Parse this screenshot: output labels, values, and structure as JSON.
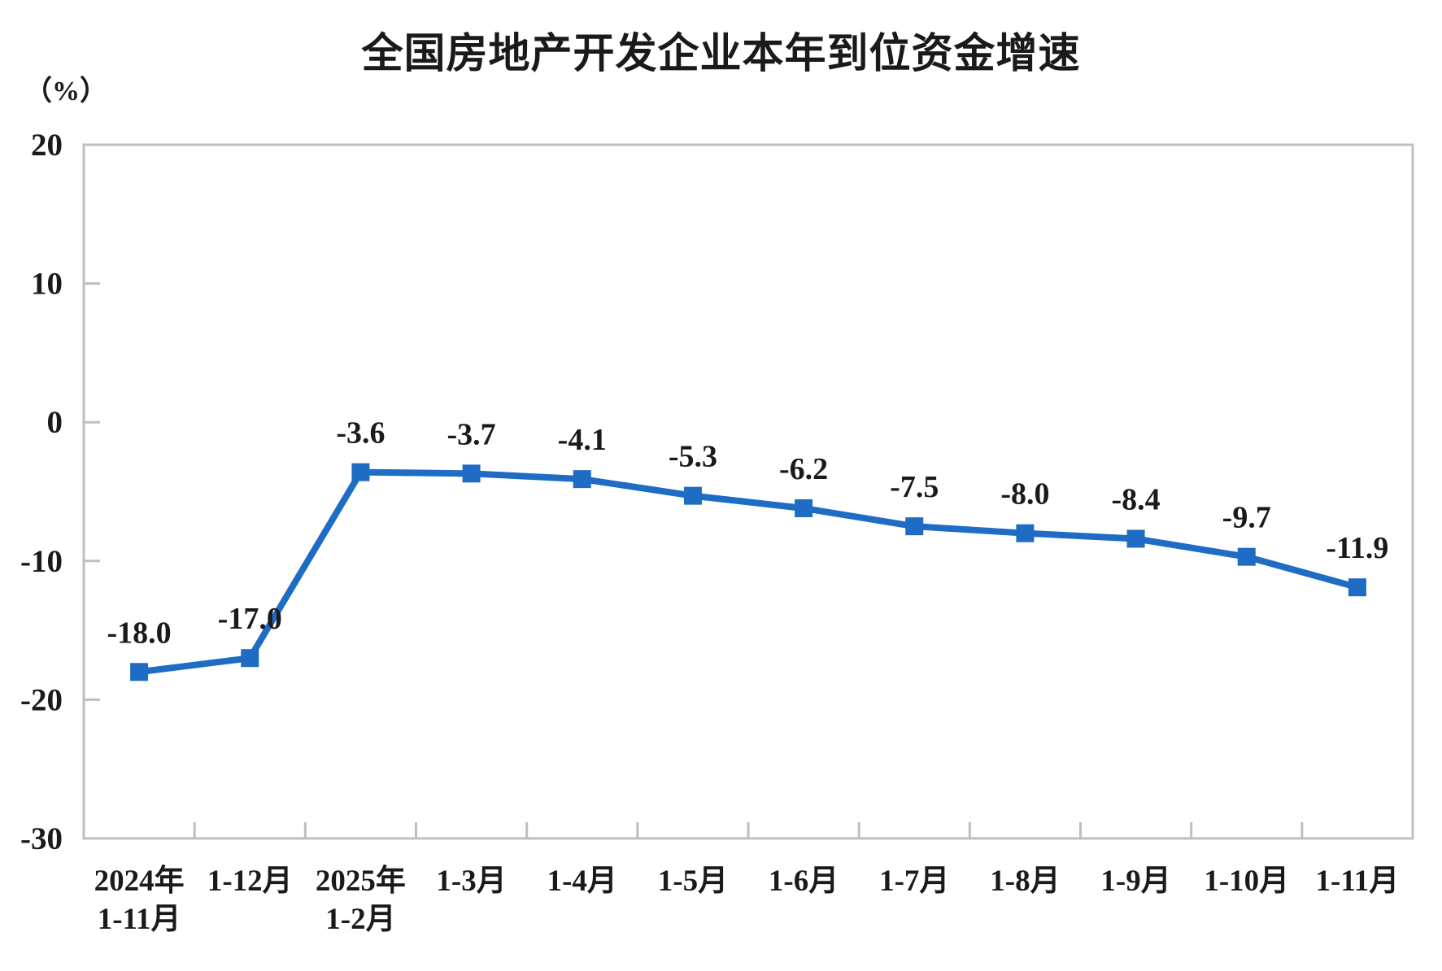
{
  "chart_data": {
    "type": "line",
    "title": "全国房地产开发企业本年到位资金增速",
    "unit_label": "（%）",
    "categories": [
      [
        "2024年",
        "1-11月"
      ],
      [
        "1-12月"
      ],
      [
        "2025年",
        "1-2月"
      ],
      [
        "1-3月"
      ],
      [
        "1-4月"
      ],
      [
        "1-5月"
      ],
      [
        "1-6月"
      ],
      [
        "1-7月"
      ],
      [
        "1-8月"
      ],
      [
        "1-9月"
      ],
      [
        "1-10月"
      ],
      [
        "1-11月"
      ]
    ],
    "values": [
      -18.0,
      -17.0,
      -3.6,
      -3.7,
      -4.1,
      -5.3,
      -6.2,
      -7.5,
      -8.0,
      -8.4,
      -9.7,
      -11.9
    ],
    "data_labels": [
      "-18.0",
      "-17.0",
      "-3.6",
      "-3.7",
      "-4.1",
      "-5.3",
      "-6.2",
      "-7.5",
      "-8.0",
      "-8.4",
      "-9.7",
      "-11.9"
    ],
    "ylim": [
      -30,
      20
    ],
    "yticks": [
      20,
      10,
      0,
      -10,
      -20,
      -30
    ],
    "grid": false,
    "legend": null,
    "line_color": "#1e6cc4",
    "marker": "square",
    "axis_box_color": "#bfbfbf",
    "text_color": "#1a1a1a"
  }
}
